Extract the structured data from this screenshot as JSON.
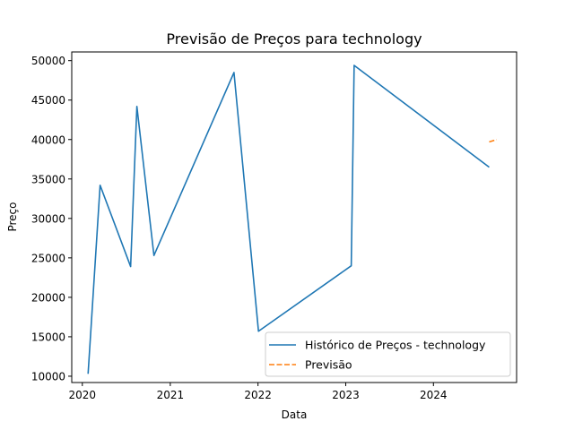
{
  "chart_data": {
    "type": "line",
    "title": "Previsão de Preços para technology",
    "xlabel": "Data",
    "ylabel": "Preço",
    "xlim": [
      "2019-11-18",
      "2024-12-12"
    ],
    "ylim": [
      9200,
      51100
    ],
    "x_ticks": [
      {
        "date": "2020-01-01",
        "label": "2020"
      },
      {
        "date": "2021-01-01",
        "label": "2021"
      },
      {
        "date": "2022-01-01",
        "label": "2022"
      },
      {
        "date": "2023-01-01",
        "label": "2023"
      },
      {
        "date": "2024-01-01",
        "label": "2024"
      }
    ],
    "y_ticks": [
      10000,
      15000,
      20000,
      25000,
      30000,
      35000,
      40000,
      45000,
      50000
    ],
    "grid": false,
    "legend": "lower-right",
    "series": [
      {
        "name": "Histórico de Preços - technology",
        "color": "#1f77b4",
        "dash": "solid",
        "points": [
          {
            "x": "2020-01-25",
            "y": 10300
          },
          {
            "x": "2020-03-15",
            "y": 34200
          },
          {
            "x": "2020-07-20",
            "y": 23900
          },
          {
            "x": "2020-08-15",
            "y": 44200
          },
          {
            "x": "2020-10-25",
            "y": 25300
          },
          {
            "x": "2021-09-23",
            "y": 48500
          },
          {
            "x": "2022-01-03",
            "y": 15700
          },
          {
            "x": "2023-01-24",
            "y": 24000
          },
          {
            "x": "2023-02-05",
            "y": 49400
          },
          {
            "x": "2024-08-20",
            "y": 36500
          }
        ]
      },
      {
        "name": "Previsão",
        "color": "#ff7f0e",
        "dash": "dashed",
        "points": [
          {
            "x": "2024-08-20",
            "y": 39700
          },
          {
            "x": "2024-09-20",
            "y": 40000
          }
        ]
      }
    ]
  }
}
